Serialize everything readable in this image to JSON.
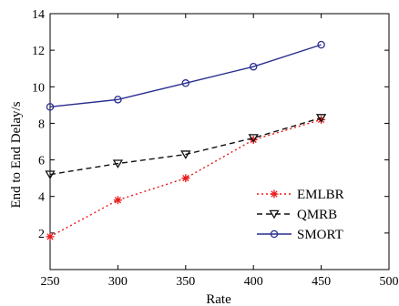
{
  "chart_data": {
    "type": "line",
    "xlabel": "Rate",
    "ylabel": "End to End Delay/s",
    "x": [
      250,
      300,
      350,
      400,
      450
    ],
    "xlim": [
      250,
      500
    ],
    "ylim": [
      0,
      14
    ],
    "xticks": [
      250,
      300,
      350,
      400,
      450,
      500
    ],
    "yticks": [
      2,
      4,
      6,
      8,
      10,
      12,
      14
    ],
    "grid": false,
    "legend_position": "bottom-right",
    "series": [
      {
        "name": "EMLBR",
        "values": [
          1.8,
          3.8,
          5.0,
          7.1,
          8.2
        ],
        "color": "#e8191b",
        "dash": "dotted",
        "marker": "asterisk"
      },
      {
        "name": "QMRB",
        "values": [
          5.2,
          5.8,
          6.3,
          7.2,
          8.3
        ],
        "color": "#111111",
        "dash": "dashed",
        "marker": "triangle-down"
      },
      {
        "name": "SMORT",
        "values": [
          8.9,
          9.3,
          10.2,
          11.1,
          12.3
        ],
        "color": "#2b2f8f",
        "dash": "solid",
        "marker": "circle"
      }
    ]
  }
}
